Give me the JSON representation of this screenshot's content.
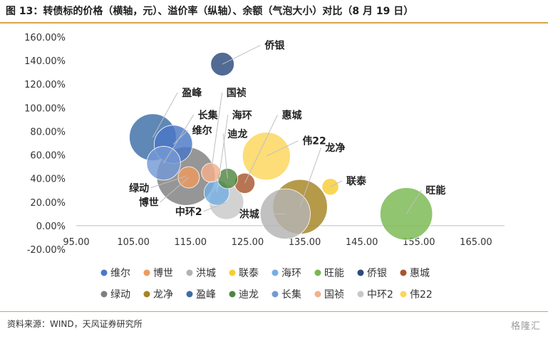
{
  "title": "图 13：转债标的价格（横轴，元）、溢价率（纵轴）、余额（气泡大小）对比（8 月 19 日）",
  "source": "资料来源：WIND，天风证券研究所",
  "watermark": "格隆汇",
  "chart_data": {
    "type": "bubble",
    "xlim": [
      95,
      170
    ],
    "ylim": [
      -20,
      160
    ],
    "x_ticks": [
      "95.00",
      "105.00",
      "115.00",
      "125.00",
      "135.00",
      "145.00",
      "155.00",
      "165.00"
    ],
    "y_ticks": [
      "-20.00%",
      "0.00%",
      "20.00%",
      "40.00%",
      "60.00%",
      "80.00%",
      "100.00%",
      "120.00%",
      "140.00%",
      "160.00%"
    ],
    "grid": false,
    "legend_position": "bottom",
    "series": [
      {
        "name": "维尔",
        "x": 112.0,
        "y": 69,
        "size": 3.2,
        "color": "#4a78c6"
      },
      {
        "name": "博世",
        "x": 114.7,
        "y": 41,
        "size": 1.0,
        "color": "#ef9a5f"
      },
      {
        "name": "洪城",
        "x": 131.6,
        "y": 10,
        "size": 5.5,
        "color": "#b3b3b3"
      },
      {
        "name": "联泰",
        "x": 139.5,
        "y": 33,
        "size": 0.6,
        "color": "#f7cd33"
      },
      {
        "name": "海环",
        "x": 119.6,
        "y": 28,
        "size": 1.4,
        "color": "#74aee2"
      },
      {
        "name": "旺能",
        "x": 152.8,
        "y": 10,
        "size": 6.0,
        "color": "#79b851"
      },
      {
        "name": "侨银",
        "x": 120.6,
        "y": 137,
        "size": 1.2,
        "color": "#2b4b7e"
      },
      {
        "name": "惠城",
        "x": 124.5,
        "y": 36,
        "size": 0.9,
        "color": "#a8552d"
      },
      {
        "name": "绿动",
        "x": 114.2,
        "y": 42,
        "size": 7.5,
        "color": "#7f7f7f"
      },
      {
        "name": "龙净",
        "x": 134.2,
        "y": 16,
        "size": 6.5,
        "color": "#a58422"
      },
      {
        "name": "盈峰",
        "x": 108.4,
        "y": 75,
        "size": 4.8,
        "color": "#3c6ea6"
      },
      {
        "name": "迪龙",
        "x": 121.5,
        "y": 40,
        "size": 0.9,
        "color": "#4f8640"
      },
      {
        "name": "长集",
        "x": 110.3,
        "y": 53,
        "size": 2.5,
        "color": "#7599d7"
      },
      {
        "name": "国祯",
        "x": 118.6,
        "y": 45,
        "size": 0.8,
        "color": "#f4b08a"
      },
      {
        "name": "中环2",
        "x": 121.3,
        "y": 20,
        "size": 2.6,
        "color": "#c8c8c8"
      },
      {
        "name": "伟22",
        "x": 128.3,
        "y": 59,
        "size": 5.0,
        "color": "#fcd65a"
      }
    ],
    "annotations": [
      {
        "text": "侨银",
        "for": "侨银",
        "x": 128.0,
        "y": 153
      },
      {
        "text": "盈峰",
        "for": "盈峰",
        "x": 113.5,
        "y": 113
      },
      {
        "text": "国祯",
        "for": "国祯",
        "x": 121.3,
        "y": 113
      },
      {
        "text": "长集",
        "for": "长集",
        "x": 116.3,
        "y": 94
      },
      {
        "text": "海环",
        "for": "海环",
        "x": 122.3,
        "y": 94
      },
      {
        "text": "惠城",
        "for": "惠城",
        "x": 131.0,
        "y": 94
      },
      {
        "text": "维尔",
        "for": "维尔",
        "x": 115.3,
        "y": 81
      },
      {
        "text": "迪龙",
        "for": "迪龙",
        "x": 121.5,
        "y": 78
      },
      {
        "text": "伟22",
        "for": "伟22",
        "x": 134.6,
        "y": 72
      },
      {
        "text": "龙净",
        "for": "龙净",
        "x": 138.6,
        "y": 66
      },
      {
        "text": "联泰",
        "for": "联泰",
        "x": 142.3,
        "y": 38
      },
      {
        "text": "旺能",
        "for": "旺能",
        "x": 156.2,
        "y": 30
      },
      {
        "text": "绿动",
        "for": "绿动",
        "x": 104.5,
        "y": 32
      },
      {
        "text": "博世",
        "for": "博世",
        "x": 106.2,
        "y": 20
      },
      {
        "text": "中环2",
        "for": "中环2",
        "x": 113.8,
        "y": 12
      },
      {
        "text": "洪城",
        "for": "洪城",
        "x": 123.8,
        "y": 10
      }
    ],
    "legend_order": [
      "维尔",
      "博世",
      "洪城",
      "联泰",
      "海环",
      "旺能",
      "侨银",
      "惠城",
      "绿动",
      "龙净",
      "盈峰",
      "迪龙",
      "长集",
      "国祯",
      "中环2",
      "伟22"
    ]
  }
}
